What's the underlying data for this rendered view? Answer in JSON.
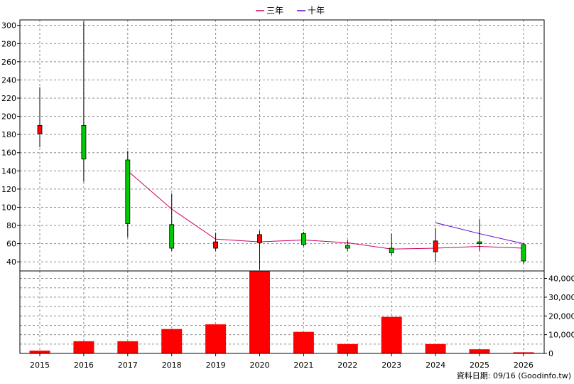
{
  "footer": "資料日期: 09/16 (Goodinfo.tw)",
  "legend": [
    {
      "label": "三年",
      "color": "#cc0066"
    },
    {
      "label": "十年",
      "color": "#6600cc"
    }
  ],
  "colors": {
    "up": "#ff0000",
    "down": "#00cc00",
    "volume": "#ff0000",
    "wick": "#000000"
  },
  "chart_data": [
    {
      "type": "candlestick",
      "title": "",
      "x": [
        "2015",
        "2016",
        "2017",
        "2018",
        "2019",
        "2020",
        "2021",
        "2022",
        "2023",
        "2024",
        "2025",
        "2026"
      ],
      "ylim": [
        30,
        306
      ],
      "yticks": [
        40,
        60,
        80,
        100,
        120,
        140,
        160,
        180,
        200,
        220,
        240,
        260,
        280,
        300
      ],
      "grid": true,
      "candles": [
        {
          "x": "2015",
          "open": 181,
          "close": 190,
          "high": 232,
          "low": 166
        },
        {
          "x": "2016",
          "open": 190,
          "close": 153,
          "high": 304,
          "low": 128
        },
        {
          "x": "2017",
          "open": 152,
          "close": 82,
          "high": 162,
          "low": 67
        },
        {
          "x": "2018",
          "open": 81,
          "close": 55,
          "high": 115,
          "low": 52
        },
        {
          "x": "2019",
          "open": 55,
          "close": 62,
          "high": 72,
          "low": 52
        },
        {
          "x": "2020",
          "open": 61,
          "close": 70,
          "high": 74,
          "low": 31
        },
        {
          "x": "2021",
          "open": 71,
          "close": 59,
          "high": 73,
          "low": 57
        },
        {
          "x": "2022",
          "open": 58,
          "close": 55,
          "high": 64,
          "low": 52
        },
        {
          "x": "2023",
          "open": 55,
          "close": 50,
          "high": 71,
          "low": 47
        },
        {
          "x": "2024",
          "open": 51,
          "close": 63,
          "high": 77,
          "low": 40
        },
        {
          "x": "2025",
          "open": 62,
          "close": 60,
          "high": 87,
          "low": 52
        },
        {
          "x": "2026",
          "open": 59,
          "close": 41,
          "high": 60,
          "low": 38
        }
      ],
      "series": [
        {
          "name": "三年",
          "x": [
            "2017",
            "2018",
            "2019",
            "2020",
            "2021",
            "2022",
            "2023",
            "2024",
            "2025",
            "2026"
          ],
          "values": [
            140,
            98,
            65,
            62,
            64,
            61,
            54,
            55,
            57,
            55
          ]
        },
        {
          "name": "十年",
          "x": [
            "2024",
            "2025",
            "2026"
          ],
          "values": [
            83,
            71,
            60
          ]
        }
      ]
    },
    {
      "type": "bar",
      "title": "",
      "categories": [
        "2015",
        "2016",
        "2017",
        "2018",
        "2019",
        "2020",
        "2021",
        "2022",
        "2023",
        "2024",
        "2025",
        "2026"
      ],
      "values": [
        1500,
        6500,
        6500,
        13000,
        15500,
        44000,
        11500,
        5000,
        19500,
        5000,
        2200,
        600
      ],
      "ylim": [
        0,
        44000
      ],
      "yticks": [
        0,
        10000,
        20000,
        30000,
        40000
      ],
      "ytick_labels": [
        "0",
        "10,000",
        "20,000",
        "30,000",
        "40,000"
      ],
      "grid": true
    }
  ]
}
